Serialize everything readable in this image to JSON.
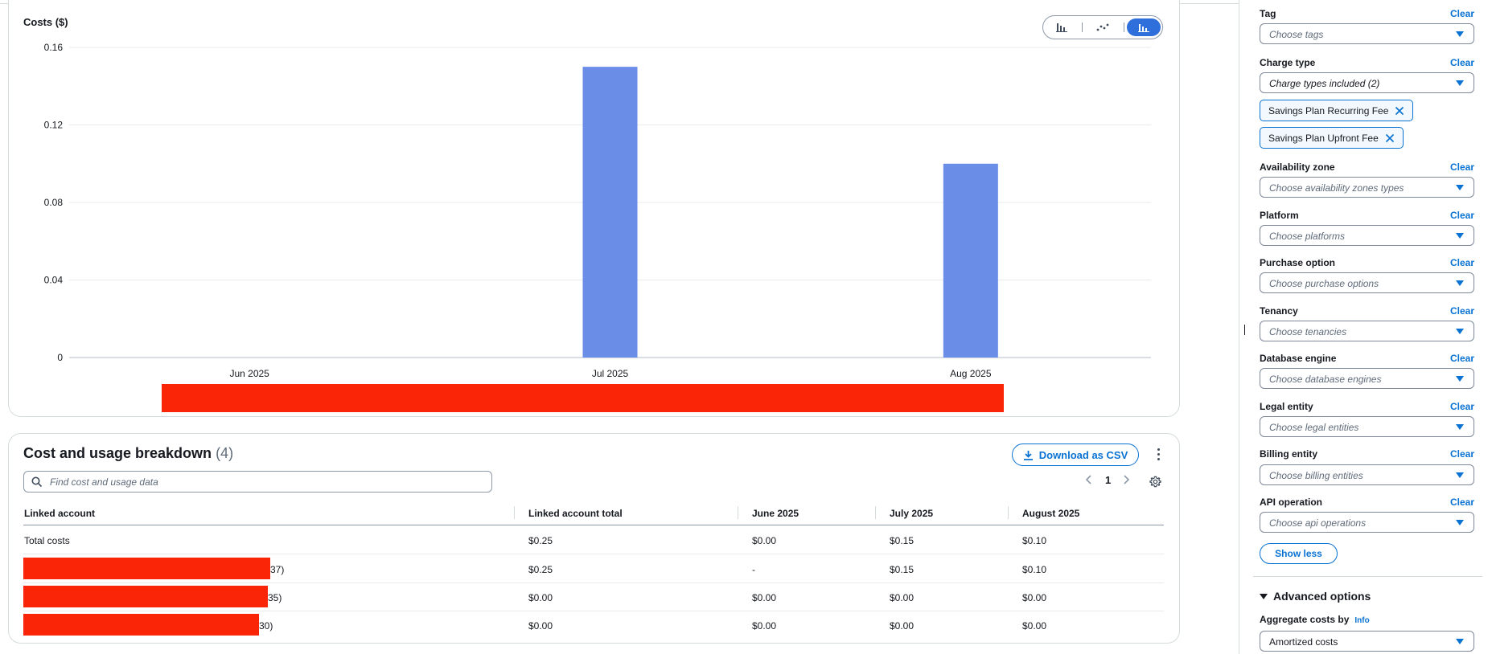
{
  "chart": {
    "title": "Costs ($)",
    "toggles": [
      {
        "name": "bar-chart",
        "active": false
      },
      {
        "name": "line-chart",
        "active": false
      },
      {
        "name": "stacked-bar-chart",
        "active": true
      }
    ]
  },
  "chart_data": {
    "type": "bar",
    "title": "",
    "xlabel": "",
    "ylabel": "Costs ($)",
    "categories": [
      "Jun 2025",
      "Jul 2025",
      "Aug 2025"
    ],
    "values": [
      0,
      0.15,
      0.1
    ],
    "ylim": [
      0,
      0.16
    ],
    "yticks": [
      "0",
      "0.04",
      "0.08",
      "0.12",
      "0.16"
    ],
    "bar_color": "#6a8de8",
    "grid": true,
    "legend": "bottom"
  },
  "breakdown": {
    "title": "Cost and usage breakdown",
    "count": "(4)",
    "download_label": "Download as CSV",
    "search_placeholder": "Find cost and usage data",
    "page": "1",
    "columns": [
      "Linked account",
      "Linked account total",
      "June 2025",
      "July 2025",
      "August 2025"
    ],
    "rows": [
      {
        "account": "Total costs",
        "total": "$0.25",
        "jun": "$0.00",
        "jul": "$0.15",
        "aug": "$0.10"
      },
      {
        "account": "37)",
        "total": "$0.25",
        "jun": "-",
        "jul": "$0.15",
        "aug": "$0.10"
      },
      {
        "account": "35)",
        "total": "$0.00",
        "jun": "$0.00",
        "jul": "$0.00",
        "aug": "$0.00"
      },
      {
        "account": "30)",
        "total": "$0.00",
        "jun": "$0.00",
        "jul": "$0.00",
        "aug": "$0.00"
      }
    ]
  },
  "filters": {
    "clear_label": "Clear",
    "tag": {
      "label": "Tag",
      "placeholder": "Choose tags"
    },
    "charge_type": {
      "label": "Charge type",
      "value": "Charge types included (2)",
      "tokens": [
        "Savings Plan Recurring Fee",
        "Savings Plan Upfront Fee"
      ]
    },
    "availability_zone": {
      "label": "Availability zone",
      "placeholder": "Choose availability zones types"
    },
    "platform": {
      "label": "Platform",
      "placeholder": "Choose platforms"
    },
    "purchase_option": {
      "label": "Purchase option",
      "placeholder": "Choose purchase options"
    },
    "tenancy": {
      "label": "Tenancy",
      "placeholder": "Choose tenancies"
    },
    "database_engine": {
      "label": "Database engine",
      "placeholder": "Choose database engines"
    },
    "legal_entity": {
      "label": "Legal entity",
      "placeholder": "Choose legal entities"
    },
    "billing_entity": {
      "label": "Billing entity",
      "placeholder": "Choose billing entities"
    },
    "api_operation": {
      "label": "API operation",
      "placeholder": "Choose api operations"
    },
    "show_less_label": "Show less"
  },
  "advanced": {
    "title": "Advanced options",
    "aggregate_label": "Aggregate costs by",
    "info_label": "Info",
    "aggregate_value": "Amortized costs"
  },
  "colors": {
    "accent": "#0972d3",
    "bar": "#6a8de8",
    "redaction": "#fa2407"
  }
}
